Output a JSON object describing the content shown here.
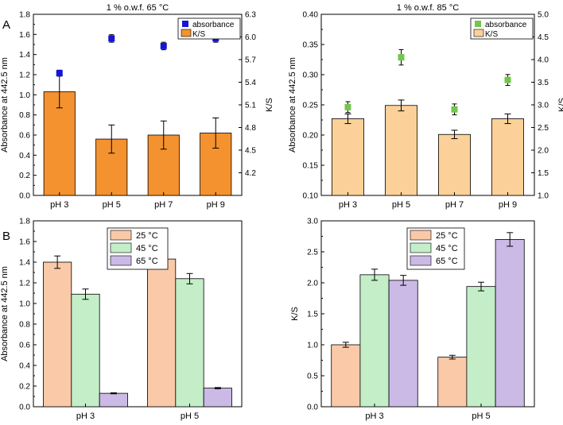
{
  "panel_labels": {
    "a": "A",
    "b": "B"
  },
  "colors": {
    "orange_bar": "#F3922E",
    "light_orange_bar": "#FBD199",
    "blue_marker": "#1515D6",
    "green_marker": "#72C64B",
    "bar_25": "#F9C9A8",
    "bar_45": "#C3EEC7",
    "bar_65": "#CBB9E6",
    "axis": "#000000"
  },
  "chart_data": [
    {
      "id": "a1",
      "type": "bar",
      "title": "1 % o.w.f.  65 °C",
      "categories": [
        "pH 3",
        "pH 5",
        "pH 7",
        "pH 9"
      ],
      "ylabel": "Absorbance at 442.5 nm",
      "ylabel_right": "K/S",
      "ylim": [
        0,
        1.8
      ],
      "yticks": [
        "0.0",
        "0.2",
        "0.4",
        "0.6",
        "0.8",
        "1.0",
        "1.2",
        "1.4",
        "1.6",
        "1.8"
      ],
      "ylim_right": [
        3.9,
        6.3
      ],
      "yticks_right": [
        "4.2",
        "4.5",
        "4.8",
        "5.1",
        "5.4",
        "5.7",
        "6.0",
        "6.3"
      ],
      "legend": [
        "absorbance",
        "K/S"
      ],
      "legend_position": "top-right",
      "bar_series": {
        "name": "K/S",
        "values": [
          1.03,
          0.56,
          0.6,
          0.62
        ],
        "errors": [
          0.16,
          0.14,
          0.14,
          0.15
        ],
        "color_key": "orange_bar"
      },
      "marker_series": {
        "name": "absorbance",
        "axis": "right",
        "values": [
          5.52,
          5.98,
          5.88,
          5.98
        ],
        "errors": [
          0.04,
          0.05,
          0.05,
          0.05
        ],
        "color_key": "blue_marker"
      }
    },
    {
      "id": "a2",
      "type": "bar",
      "title": "1 % o.w.f.  85 °C",
      "categories": [
        "pH 3",
        "pH 5",
        "pH 7",
        "pH 9"
      ],
      "ylabel": "Absorbance at 442.5 nm",
      "ylabel_right": "K/S",
      "ylim": [
        0.1,
        0.4
      ],
      "yticks": [
        "0.10",
        "0.15",
        "0.20",
        "0.25",
        "0.30",
        "0.35",
        "0.40"
      ],
      "ylim_right": [
        1.0,
        5.0
      ],
      "yticks_right": [
        "1.0",
        "1.5",
        "2.0",
        "2.5",
        "3.0",
        "3.5",
        "4.0",
        "4.5",
        "5.0"
      ],
      "legend": [
        "absorbance",
        "K/S"
      ],
      "legend_position": "top-right",
      "bar_series": {
        "name": "K/S",
        "values": [
          0.227,
          0.249,
          0.201,
          0.227
        ],
        "errors": [
          0.008,
          0.009,
          0.007,
          0.008
        ],
        "color_key": "light_orange_bar"
      },
      "marker_series": {
        "name": "absorbance",
        "axis": "right",
        "values": [
          2.95,
          4.05,
          2.9,
          3.55
        ],
        "errors": [
          0.12,
          0.17,
          0.12,
          0.12
        ],
        "color_key": "green_marker"
      }
    },
    {
      "id": "b1",
      "type": "bar",
      "title": "",
      "categories": [
        "pH 3",
        "pH 5"
      ],
      "ylabel": "Absorbance at 442.5 nm",
      "ylim": [
        0,
        1.8
      ],
      "yticks": [
        "0.0",
        "0.2",
        "0.4",
        "0.6",
        "0.8",
        "1.0",
        "1.2",
        "1.4",
        "1.6",
        "1.8"
      ],
      "legend_position": "top-center",
      "series": [
        {
          "name": "25 °C",
          "values": [
            1.4,
            1.43
          ],
          "errors": [
            0.06,
            0.06
          ],
          "color_key": "bar_25"
        },
        {
          "name": "45 °C",
          "values": [
            1.09,
            1.24
          ],
          "errors": [
            0.05,
            0.05
          ],
          "color_key": "bar_45"
        },
        {
          "name": "65 °C",
          "values": [
            0.13,
            0.18
          ],
          "errors": [
            0.005,
            0.006
          ],
          "color_key": "bar_65"
        }
      ]
    },
    {
      "id": "b2",
      "type": "bar",
      "title": "",
      "categories": [
        "pH 3",
        "pH 5"
      ],
      "ylabel": "K/S",
      "ylim": [
        0,
        3.0
      ],
      "yticks": [
        "0.0",
        "0.5",
        "1.0",
        "1.5",
        "2.0",
        "2.5",
        "3.0"
      ],
      "legend_position": "top-center",
      "series": [
        {
          "name": "25 °C",
          "values": [
            1.0,
            0.8
          ],
          "errors": [
            0.04,
            0.03
          ],
          "color_key": "bar_25"
        },
        {
          "name": "45 °C",
          "values": [
            2.13,
            1.94
          ],
          "errors": [
            0.09,
            0.07
          ],
          "color_key": "bar_45"
        },
        {
          "name": "65 °C",
          "values": [
            2.04,
            2.7
          ],
          "errors": [
            0.08,
            0.11
          ],
          "color_key": "bar_65"
        }
      ]
    }
  ]
}
